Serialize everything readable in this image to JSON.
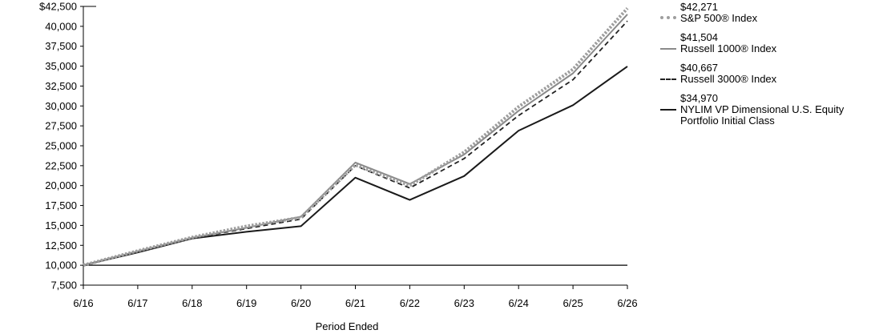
{
  "chart_data": {
    "type": "line",
    "xlabel": "Period Ended",
    "ylabel": "",
    "categories": [
      "6/16",
      "6/17",
      "6/18",
      "6/19",
      "6/20",
      "6/21",
      "6/22",
      "6/23",
      "6/24",
      "6/25",
      "6/26"
    ],
    "yticks": [
      "$42,500",
      "40,000",
      "37,500",
      "35,000",
      "32,500",
      "30,000",
      "27,500",
      "25,000",
      "22,500",
      "20,000",
      "17,500",
      "15,000",
      "12,500",
      "10,000",
      "7,500"
    ],
    "ylim": [
      7500,
      42500
    ],
    "baseline": 10000,
    "grid": false,
    "legend_position": "right",
    "series": [
      {
        "name": "S&P 500® Index",
        "end_value": "$42,271",
        "style": "dotted",
        "color": "#9e9e9e",
        "values": [
          10000,
          11800,
          13500,
          14900,
          16000,
          22600,
          20000,
          24200,
          29900,
          34600,
          42271
        ]
      },
      {
        "name": "Russell 1000® Index",
        "end_value": "$41,504",
        "style": "solid",
        "color": "#8a8a8a",
        "values": [
          10000,
          11750,
          13450,
          14700,
          16100,
          22900,
          20200,
          23900,
          29400,
          34100,
          41504
        ]
      },
      {
        "name": "Russell 3000® Index",
        "end_value": "$40,667",
        "style": "dashed",
        "color": "#222222",
        "values": [
          10000,
          11700,
          13400,
          14600,
          15800,
          22500,
          19700,
          23400,
          28800,
          33300,
          40667
        ]
      },
      {
        "name": "NYLIM VP Dimensional U.S. Equity\nPortfolio Initial Class",
        "end_value": "$34,970",
        "style": "solid",
        "color": "#1a1a1a",
        "values": [
          10000,
          11600,
          13350,
          14200,
          14900,
          21000,
          18200,
          21200,
          26900,
          30100,
          34970
        ]
      }
    ]
  }
}
